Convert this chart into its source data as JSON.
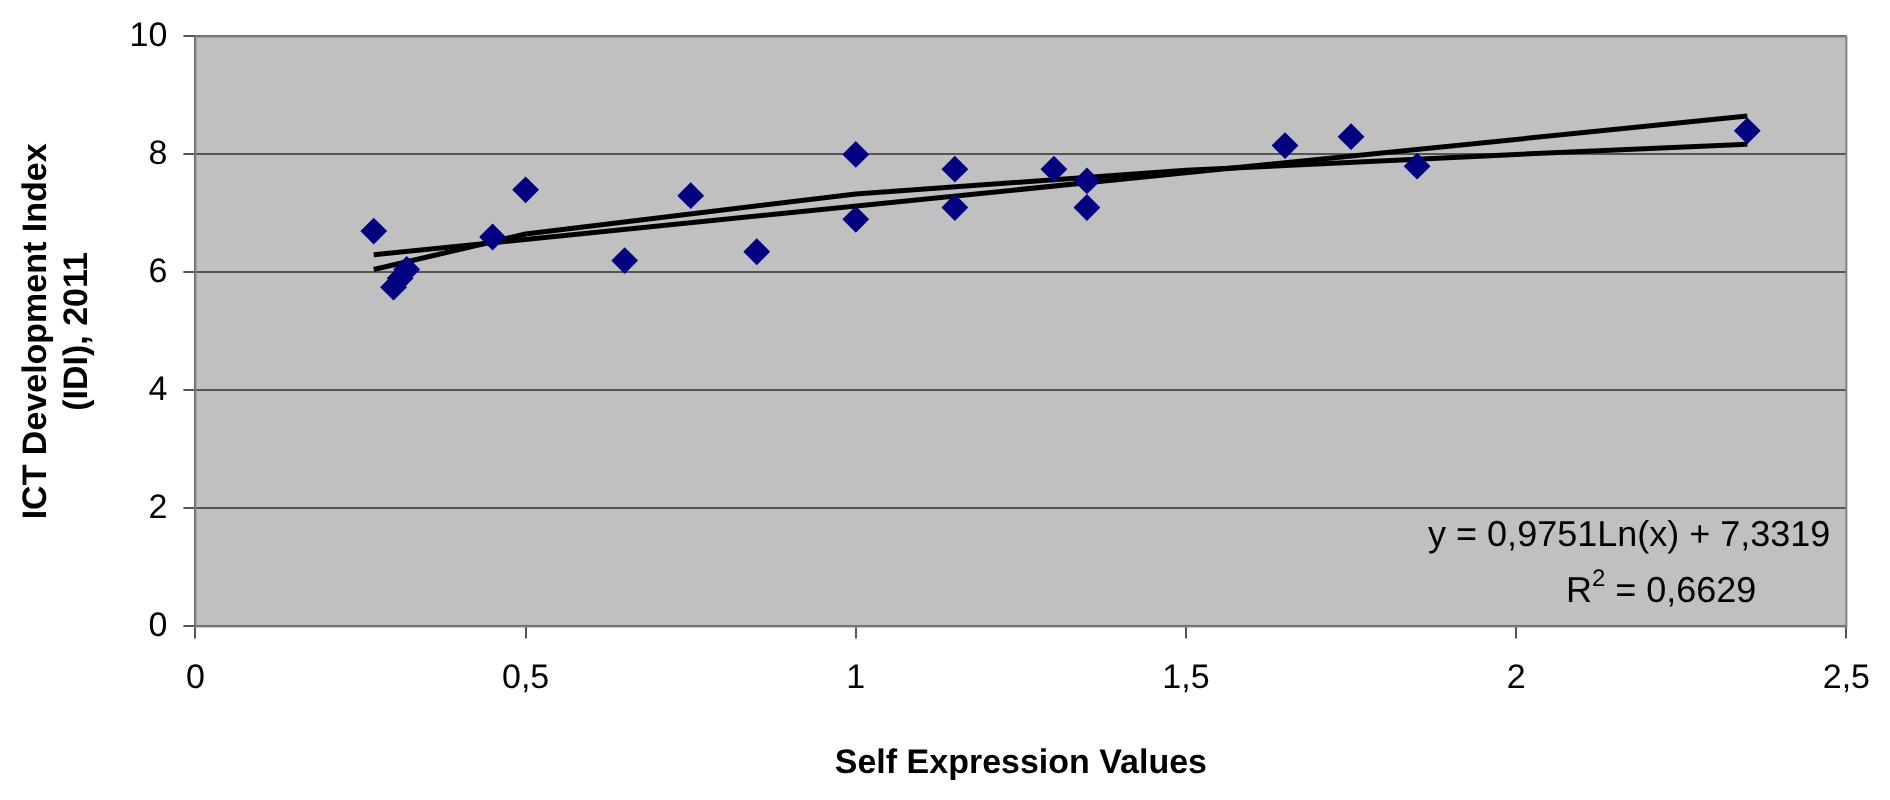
{
  "chart_data": {
    "type": "scatter",
    "xlabel": "Self Expression Values",
    "ylabel": "ICT Development Index\n(IDI), 2011",
    "xlim": [
      0,
      2.5
    ],
    "xticks": [
      0,
      {
        "value": 0.5,
        "label": "0,5"
      },
      1,
      {
        "value": 1.5,
        "label": "1,5"
      },
      2,
      {
        "value": 2.5,
        "label": "2,5"
      }
    ],
    "ylim": [
      0,
      10
    ],
    "yticks": [
      0,
      2,
      4,
      6,
      8,
      10
    ],
    "grid": "y",
    "marker": "diamond",
    "legend": false,
    "annotations": [
      "y = 0,9751Ln(x) + 7,3319",
      "R$^{2}$ = 0,6629"
    ],
    "series": [
      {
        "color": "#000080",
        "x": [
          0.27,
          0.3,
          0.31,
          0.32,
          0.45,
          0.5,
          0.65,
          0.75,
          0.85,
          1.0,
          1.0,
          1.15,
          1.15,
          1.3,
          1.35,
          1.35,
          1.65,
          1.75,
          1.85,
          2.35
        ],
        "values": [
          6.7,
          5.75,
          5.9,
          6.05,
          6.6,
          7.4,
          6.2,
          7.3,
          6.35,
          8.0,
          6.9,
          7.75,
          7.1,
          7.75,
          7.55,
          7.1,
          8.15,
          8.3,
          7.8,
          8.4
        ]
      },
      {
        "type": "line",
        "marker": "none",
        "color": "#000000",
        "x": [
          0.27,
          0.5,
          1.0,
          1.5,
          2.0,
          2.35
        ],
        "values": [
          6.05,
          6.65,
          7.33,
          7.73,
          8.0,
          8.17
        ]
      },
      {
        "type": "line",
        "marker": "none",
        "color": "#000000",
        "x": [
          0.27,
          2.35
        ],
        "values": [
          6.3,
          8.65
        ]
      }
    ]
  }
}
